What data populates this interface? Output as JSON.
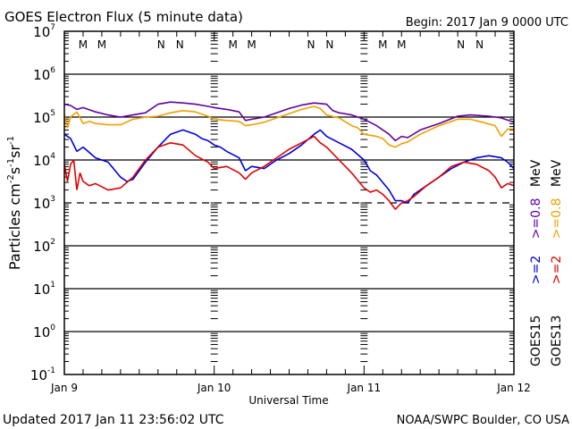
{
  "chart_data": {
    "type": "line",
    "title": "GOES Electron Flux (5 minute data)",
    "begin_label": "Begin: 2017 Jan 9 0000 UTC",
    "xlabel": "Universal Time",
    "ylabel_parts": [
      "Particles cm",
      "-2",
      "s",
      "-1",
      "sr",
      "-1"
    ],
    "x_unit": "hours since 2017 Jan 9 0000 UTC",
    "xlim": [
      0,
      72
    ],
    "ylim_log10": [
      -1,
      7
    ],
    "yscale": "log",
    "x_ticks": [
      {
        "hour": 0,
        "label": "Jan 9"
      },
      {
        "hour": 24,
        "label": "Jan 10"
      },
      {
        "hour": 48,
        "label": "Jan 11"
      },
      {
        "hour": 72,
        "label": "Jan 12"
      }
    ],
    "y_ticks": [
      {
        "exp": 7,
        "base": "10",
        "sup": "7"
      },
      {
        "exp": 6,
        "base": "10",
        "sup": "6"
      },
      {
        "exp": 5,
        "base": "10",
        "sup": "5"
      },
      {
        "exp": 4,
        "base": "10",
        "sup": "4"
      },
      {
        "exp": 3,
        "base": "10",
        "sup": "3"
      },
      {
        "exp": 2,
        "base": "10",
        "sup": "2"
      },
      {
        "exp": 1,
        "base": "10",
        "sup": "1"
      },
      {
        "exp": 0,
        "base": "10",
        "sup": "0"
      },
      {
        "exp": -1,
        "base": "10",
        "sup": "-1"
      }
    ],
    "threshold_dashed_log10": 3,
    "mn_markers": [
      {
        "hour": 3.0,
        "label": "M",
        "color": "#e00000"
      },
      {
        "hour": 6.0,
        "label": "M",
        "color": "#0000e0"
      },
      {
        "hour": 15.5,
        "label": "N",
        "color": "#e00000"
      },
      {
        "hour": 18.5,
        "label": "N",
        "color": "#0000e0"
      },
      {
        "hour": 27.0,
        "label": "M",
        "color": "#e00000"
      },
      {
        "hour": 30.0,
        "label": "M",
        "color": "#0000e0"
      },
      {
        "hour": 39.5,
        "label": "N",
        "color": "#e00000"
      },
      {
        "hour": 42.5,
        "label": "N",
        "color": "#0000e0"
      },
      {
        "hour": 51.0,
        "label": "M",
        "color": "#e00000"
      },
      {
        "hour": 54.0,
        "label": "M",
        "color": "#0000e0"
      },
      {
        "hour": 63.5,
        "label": "N",
        "color": "#e00000"
      },
      {
        "hour": 66.5,
        "label": "N",
        "color": "#0000e0"
      }
    ],
    "legend": {
      "placement": "right",
      "columns": [
        {
          "satellite": "GOES15",
          "entries": [
            {
              "label": ">=2",
              "color": "#0000e0"
            },
            {
              "label": ">=0.8",
              "color": "#6000a0"
            },
            {
              "label": "MeV",
              "color": "#000000"
            }
          ]
        },
        {
          "satellite": "GOES13",
          "entries": [
            {
              "label": ">=2",
              "color": "#e00000"
            },
            {
              "label": ">=0.8",
              "color": "#f0a000"
            },
            {
              "label": "MeV",
              "color": "#000000"
            }
          ]
        }
      ]
    },
    "series": [
      {
        "name": "GOES15 >=0.8 MeV",
        "color": "#6000a0",
        "x": [
          0,
          1,
          2,
          3,
          5,
          7,
          9,
          11,
          13,
          15,
          17,
          19,
          21,
          23,
          24,
          26,
          28,
          29,
          30,
          32,
          34,
          36,
          38,
          40,
          42,
          43,
          44,
          46,
          48,
          50,
          52,
          53,
          54,
          55,
          57,
          60,
          63,
          65,
          68,
          70,
          72
        ],
        "y_log10": [
          5.3,
          5.27,
          5.18,
          5.22,
          5.12,
          5.05,
          5.0,
          5.05,
          5.1,
          5.3,
          5.35,
          5.33,
          5.3,
          5.25,
          5.22,
          5.18,
          5.12,
          4.92,
          4.95,
          5.0,
          5.1,
          5.2,
          5.28,
          5.33,
          5.3,
          5.15,
          5.1,
          5.05,
          4.95,
          4.8,
          4.6,
          4.45,
          4.55,
          4.52,
          4.7,
          4.85,
          5.02,
          5.05,
          5.02,
          4.98,
          4.88
        ]
      },
      {
        "name": "GOES13 >=0.8 MeV",
        "color": "#f0a000",
        "x": [
          0,
          0.5,
          1,
          2,
          3,
          4,
          5,
          7,
          9,
          11,
          13,
          15,
          17,
          19,
          21,
          23,
          24,
          26,
          28,
          29,
          30,
          32,
          34,
          36,
          38,
          40,
          41,
          42,
          44,
          46,
          47,
          48,
          50,
          51,
          52,
          53,
          54,
          55,
          57,
          60,
          63,
          65,
          67,
          69,
          70,
          71,
          72
        ],
        "y_log10": [
          5.05,
          4.75,
          5.0,
          5.12,
          4.85,
          4.9,
          4.85,
          4.82,
          4.82,
          4.95,
          5.0,
          5.02,
          5.1,
          5.15,
          5.12,
          5.02,
          4.95,
          4.92,
          4.9,
          4.8,
          4.82,
          4.88,
          4.98,
          5.08,
          5.18,
          5.25,
          5.2,
          5.05,
          4.98,
          4.8,
          4.75,
          4.6,
          4.55,
          4.5,
          4.35,
          4.3,
          4.38,
          4.42,
          4.6,
          4.8,
          4.95,
          4.95,
          4.88,
          4.8,
          4.55,
          4.72,
          4.72
        ]
      },
      {
        "name": "GOES15 >=2 MeV",
        "color": "#0000e0",
        "x": [
          0,
          1,
          2,
          3,
          5,
          7,
          9,
          10,
          11,
          13,
          15,
          17,
          19,
          21,
          22,
          23,
          24,
          25,
          26,
          28,
          29,
          30,
          32,
          34,
          36,
          38,
          40,
          41,
          42,
          44,
          46,
          48,
          49,
          50,
          52,
          53,
          54,
          55,
          56,
          58,
          60,
          62,
          64,
          66,
          68,
          70,
          71,
          72
        ],
        "y_log10": [
          4.6,
          4.5,
          4.2,
          4.3,
          4.05,
          3.95,
          3.6,
          3.5,
          3.55,
          3.95,
          4.3,
          4.6,
          4.7,
          4.6,
          4.5,
          4.45,
          4.35,
          4.3,
          4.2,
          4.05,
          3.75,
          3.85,
          3.8,
          4.0,
          4.15,
          4.35,
          4.6,
          4.7,
          4.55,
          4.4,
          4.25,
          4.0,
          3.75,
          3.65,
          3.3,
          3.05,
          3.05,
          3.0,
          3.2,
          3.4,
          3.6,
          3.8,
          3.95,
          4.05,
          4.1,
          4.05,
          3.95,
          3.8
        ]
      },
      {
        "name": "GOES13 >=2 MeV",
        "color": "#e00000",
        "x": [
          0,
          0.5,
          1,
          1.5,
          2,
          2.5,
          3,
          4,
          5,
          7,
          9,
          11,
          13,
          15,
          17,
          19,
          21,
          23,
          24,
          26,
          28,
          29,
          30,
          32,
          34,
          36,
          38,
          40,
          41,
          42,
          44,
          46,
          48,
          49,
          50,
          51,
          52,
          53,
          54,
          55,
          56,
          58,
          60,
          62,
          64,
          66,
          68,
          69,
          70,
          71,
          72
        ],
        "y_log10": [
          3.9,
          3.5,
          3.9,
          4.0,
          3.3,
          3.7,
          3.5,
          3.4,
          3.45,
          3.3,
          3.35,
          3.6,
          4.0,
          4.3,
          4.4,
          4.35,
          4.1,
          3.95,
          3.8,
          3.85,
          3.7,
          3.55,
          3.7,
          3.85,
          4.05,
          4.25,
          4.4,
          4.55,
          4.4,
          4.3,
          4.0,
          3.7,
          3.35,
          3.25,
          3.3,
          3.2,
          3.05,
          2.85,
          3.0,
          3.05,
          3.15,
          3.4,
          3.6,
          3.85,
          3.95,
          3.9,
          3.75,
          3.6,
          3.35,
          3.45,
          3.4
        ]
      }
    ]
  },
  "footer": {
    "updated": "Updated 2017 Jan 11 23:56:02 UTC",
    "credit": "NOAA/SWPC Boulder, CO USA"
  }
}
